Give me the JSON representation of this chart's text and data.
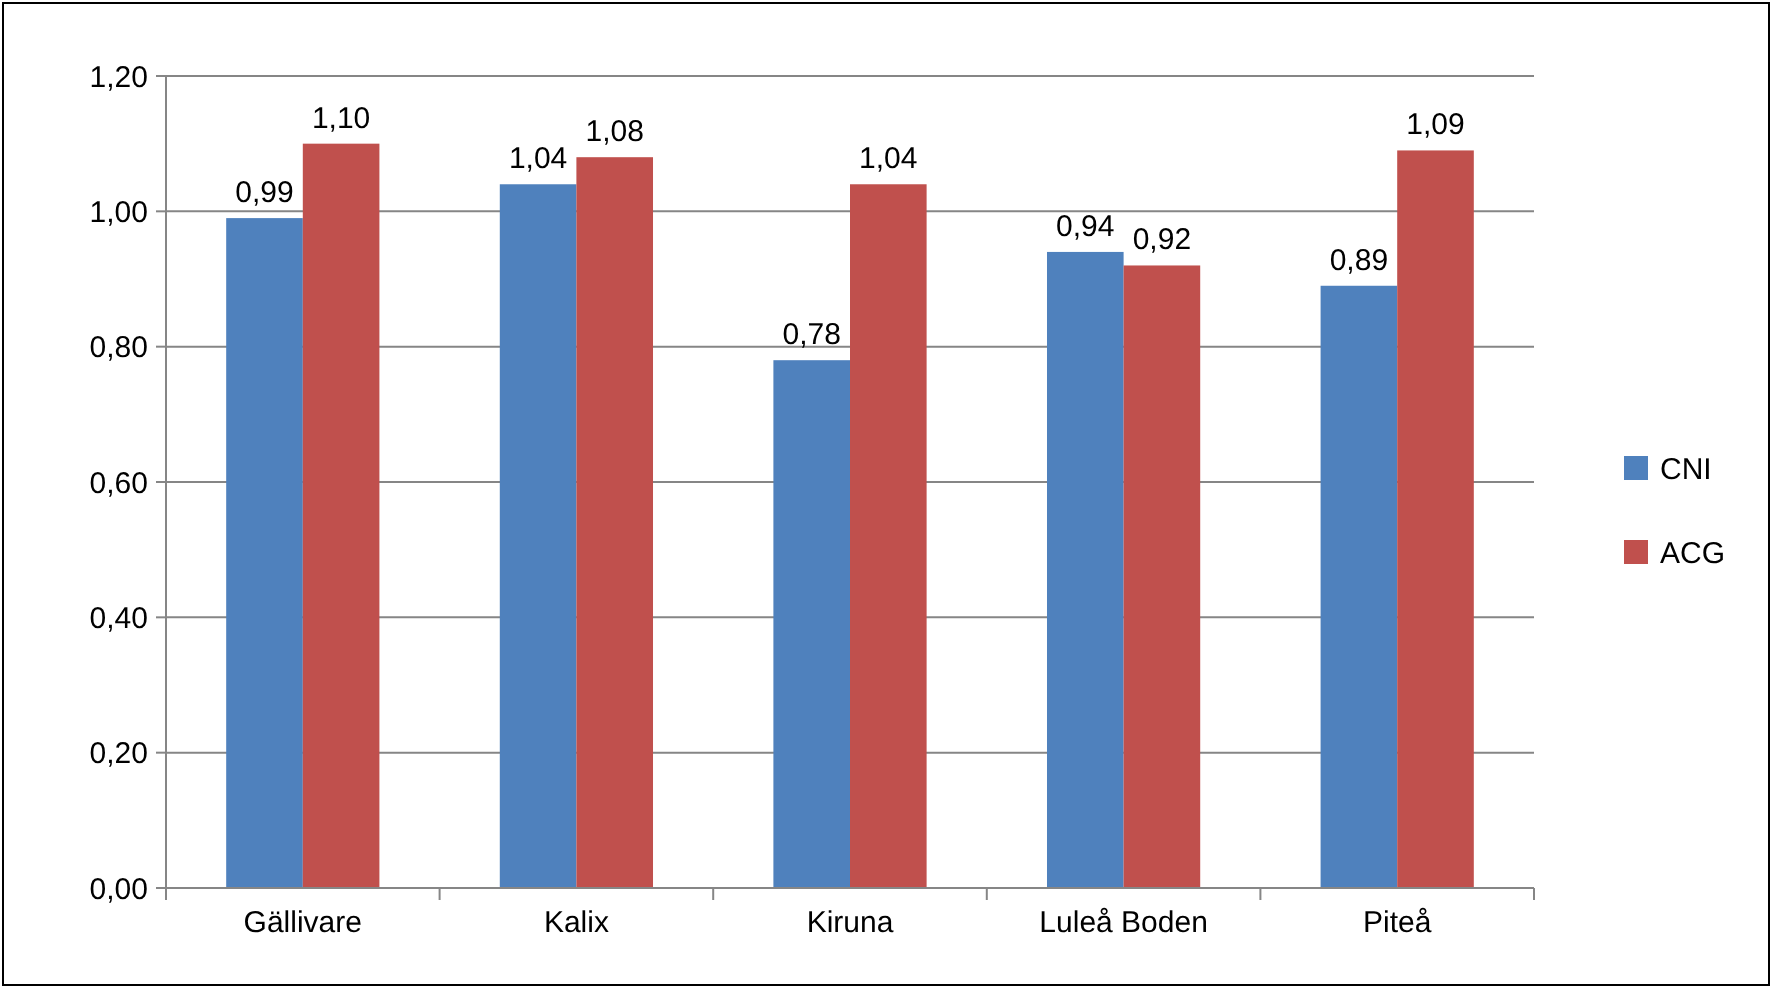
{
  "chart_data": {
    "type": "bar",
    "categories": [
      "Gällivare",
      "Kalix",
      "Kiruna",
      "Luleå Boden",
      "Piteå"
    ],
    "series": [
      {
        "name": "CNI",
        "color": "#4f81bd",
        "values": [
          0.99,
          1.04,
          0.78,
          0.94,
          0.89
        ],
        "value_labels": [
          "0,99",
          "1,04",
          "0,78",
          "0,94",
          "0,89"
        ]
      },
      {
        "name": "ACG",
        "color": "#c0504d",
        "values": [
          1.1,
          1.08,
          1.04,
          0.92,
          1.09
        ],
        "value_labels": [
          "1,10",
          "1,08",
          "1,04",
          "0,92",
          "1,09"
        ]
      }
    ],
    "ylim": [
      0,
      1.2
    ],
    "yticks": [
      {
        "value": 0,
        "label": "0,00"
      },
      {
        "value": 0.2,
        "label": "0,20"
      },
      {
        "value": 0.4,
        "label": "0,40"
      },
      {
        "value": 0.6,
        "label": "0,60"
      },
      {
        "value": 0.8,
        "label": "0,80"
      },
      {
        "value": 1,
        "label": "1,00"
      },
      {
        "value": 1.2,
        "label": "1,20"
      }
    ],
    "grid": "y",
    "legend": "right"
  }
}
